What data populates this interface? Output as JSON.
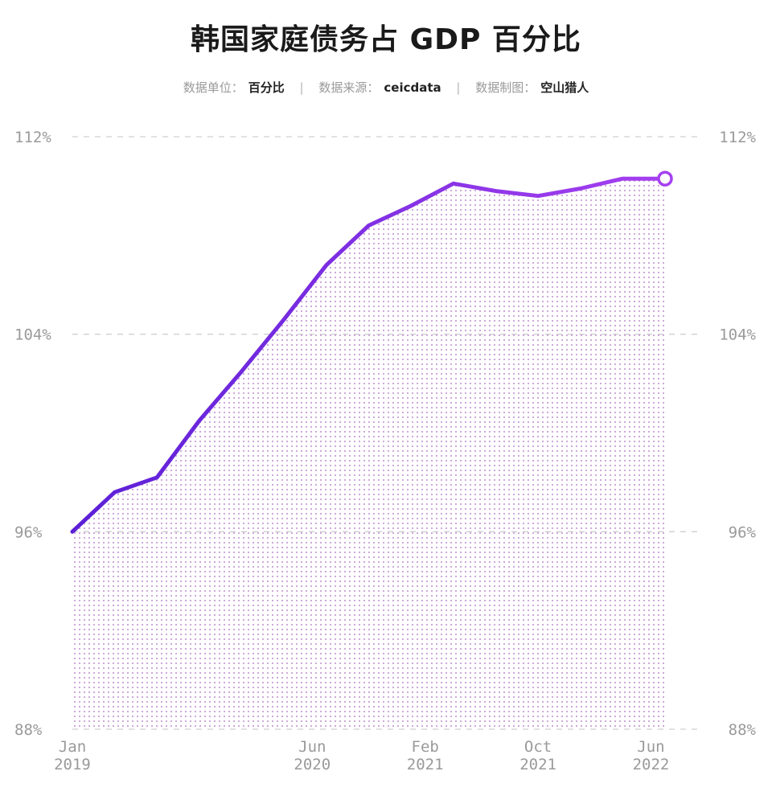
{
  "chart_data": {
    "type": "area",
    "title": "韩国家庭债务占 GDP 百分比",
    "meta": [
      {
        "label": "数据单位：",
        "value": "百分比"
      },
      {
        "label": "数据来源：",
        "value": "ceicdata"
      },
      {
        "label": "数据制图：",
        "value": "空山猎人"
      }
    ],
    "y_ticks": [
      "112%",
      "104%",
      "96%",
      "88%"
    ],
    "y_tick_values": [
      112,
      104,
      96,
      88
    ],
    "ylim": [
      88,
      112
    ],
    "x_ticks": [
      {
        "month": "Jan",
        "year": "2019",
        "date": "2019-01"
      },
      {
        "month": "Jun",
        "year": "2020",
        "date": "2020-06"
      },
      {
        "month": "Feb",
        "year": "2021",
        "date": "2021-02"
      },
      {
        "month": "Oct",
        "year": "2021",
        "date": "2021-10"
      },
      {
        "month": "Jun",
        "year": "2022",
        "date": "2022-06"
      }
    ],
    "x": [
      "2019-01",
      "2019-04",
      "2019-07",
      "2019-10",
      "2020-01",
      "2020-04",
      "2020-07",
      "2020-10",
      "2021-01",
      "2021-04",
      "2021-07",
      "2021-10",
      "2022-01",
      "2022-04",
      "2022-07"
    ],
    "values": [
      96.0,
      97.6,
      98.2,
      100.5,
      102.5,
      104.6,
      106.8,
      108.4,
      109.2,
      110.1,
      109.8,
      109.6,
      109.9,
      110.3,
      110.3
    ],
    "grid": true,
    "colors": {
      "line_start": "#5b1fd6",
      "line_end": "#a640f0",
      "fill_dot": "#c9a0d8",
      "grid": "#cfcfcf"
    }
  }
}
